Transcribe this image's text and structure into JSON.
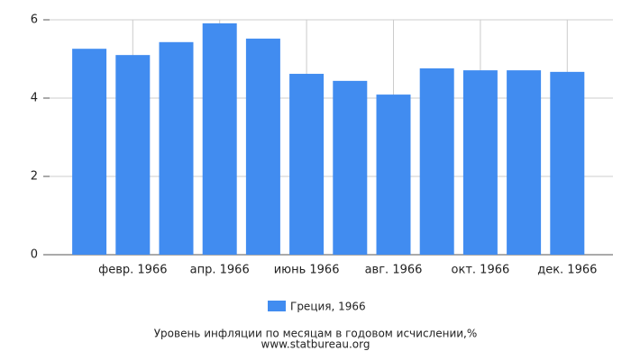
{
  "chart_data": {
    "type": "bar",
    "categories": [
      null,
      "февр. 1966",
      null,
      "апр. 1966",
      null,
      "июнь 1966",
      null,
      "авг. 1966",
      null,
      "окт. 1966",
      null,
      "дек. 1966"
    ],
    "series": [
      {
        "name": "Греция, 1966",
        "color": "#418cf0",
        "values": [
          5.26,
          5.1,
          5.43,
          5.91,
          5.52,
          4.62,
          4.44,
          4.09,
          4.76,
          4.71,
          4.71,
          4.67
        ]
      }
    ],
    "ylim": [
      0,
      6
    ],
    "yticks": [
      0,
      2,
      4,
      6
    ],
    "grid": true,
    "legend": "bottom",
    "title": "Уровень инфляции по месяцам в годовом исчислении,%",
    "source": "www.statbureau.org"
  }
}
